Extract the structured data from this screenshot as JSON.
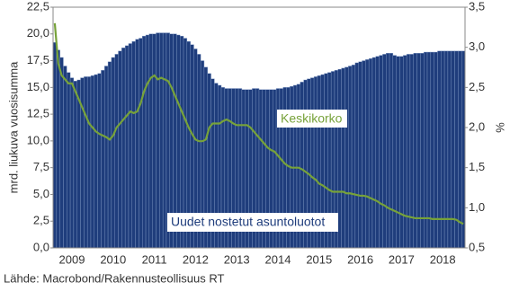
{
  "chart_data": {
    "type": "bar-line",
    "y_label": "mrd. liukuva vuosisumma",
    "y2_label": "%",
    "source": "Lähde: Macrobond/Rakennusteollisuus RT",
    "categories": [
      null,
      null,
      null,
      null,
      null,
      "2009",
      null,
      null,
      null,
      null,
      null,
      null,
      null,
      null,
      null,
      null,
      null,
      "2010",
      null,
      null,
      null,
      null,
      null,
      null,
      null,
      null,
      null,
      null,
      null,
      "2011",
      null,
      null,
      null,
      null,
      null,
      null,
      null,
      null,
      null,
      null,
      null,
      "2012",
      null,
      null,
      null,
      null,
      null,
      null,
      null,
      null,
      null,
      null,
      null,
      "2013",
      null,
      null,
      null,
      null,
      null,
      null,
      null,
      null,
      null,
      null,
      null,
      "2014",
      null,
      null,
      null,
      null,
      null,
      null,
      null,
      null,
      null,
      null,
      null,
      "2015",
      null,
      null,
      null,
      null,
      null,
      null,
      null,
      null,
      null,
      null,
      null,
      "2016",
      null,
      null,
      null,
      null,
      null,
      null,
      null,
      null,
      null,
      null,
      null,
      "2017",
      null,
      null,
      null,
      null,
      null,
      null,
      null,
      null,
      null,
      null,
      null,
      "2018",
      null,
      null,
      null,
      null,
      null,
      null
    ],
    "series": [
      {
        "name": "Uudet nostetut asuntoluotot",
        "color": "#1f3d7c",
        "values": [
          19.2,
          18.5,
          17.8,
          17.0,
          16.4,
          15.9,
          15.6,
          15.7,
          15.9,
          16.0,
          16.0,
          16.1,
          16.2,
          16.3,
          16.6,
          17.0,
          17.4,
          17.8,
          18.1,
          18.4,
          18.7,
          18.9,
          19.1,
          19.3,
          19.5,
          19.6,
          19.8,
          19.9,
          20.0,
          20.0,
          20.1,
          20.1,
          20.1,
          20.1,
          20.0,
          20.0,
          19.9,
          19.8,
          19.6,
          19.3,
          19.0,
          18.6,
          18.1,
          17.5,
          16.9,
          16.3,
          15.8,
          15.4,
          15.2,
          15.0,
          14.9,
          14.9,
          14.9,
          14.9,
          14.9,
          14.8,
          14.8,
          14.8,
          14.9,
          14.9,
          14.8,
          14.8,
          14.8,
          14.8,
          14.8,
          14.9,
          14.9,
          15.0,
          15.0,
          15.1,
          15.2,
          15.3,
          15.5,
          15.7,
          15.8,
          15.9,
          16.0,
          16.1,
          16.2,
          16.3,
          16.4,
          16.5,
          16.6,
          16.7,
          16.8,
          16.9,
          17.0,
          17.1,
          17.3,
          17.4,
          17.5,
          17.6,
          17.7,
          17.8,
          17.9,
          18.0,
          18.1,
          18.2,
          18.2,
          18.0,
          17.9,
          17.9,
          18.0,
          18.1,
          18.1,
          18.2,
          18.2,
          18.2,
          18.3,
          18.3,
          18.3,
          18.3,
          18.4,
          18.4,
          18.4,
          18.4,
          18.4,
          18.4,
          18.4,
          18.4
        ]
      },
      {
        "name": "Keskikorko",
        "color": "#77a23a",
        "axis": "y2",
        "values": [
          3.3,
          2.8,
          2.65,
          2.6,
          2.55,
          2.55,
          2.45,
          2.35,
          2.25,
          2.15,
          2.05,
          2.0,
          1.95,
          1.92,
          1.9,
          1.88,
          1.85,
          1.9,
          2.0,
          2.05,
          2.1,
          2.15,
          2.2,
          2.18,
          2.2,
          2.3,
          2.45,
          2.55,
          2.62,
          2.65,
          2.6,
          2.62,
          2.6,
          2.58,
          2.5,
          2.4,
          2.3,
          2.2,
          2.1,
          2.0,
          1.92,
          1.85,
          1.83,
          1.83,
          1.85,
          2.0,
          2.05,
          2.05,
          2.05,
          2.08,
          2.1,
          2.08,
          2.05,
          2.03,
          2.03,
          2.03,
          2.03,
          2.0,
          1.95,
          1.9,
          1.85,
          1.8,
          1.75,
          1.72,
          1.7,
          1.65,
          1.6,
          1.55,
          1.52,
          1.5,
          1.5,
          1.5,
          1.48,
          1.45,
          1.42,
          1.38,
          1.35,
          1.3,
          1.28,
          1.25,
          1.22,
          1.2,
          1.2,
          1.2,
          1.2,
          1.18,
          1.18,
          1.17,
          1.16,
          1.15,
          1.15,
          1.14,
          1.12,
          1.1,
          1.08,
          1.05,
          1.03,
          1.0,
          0.98,
          0.96,
          0.94,
          0.92,
          0.9,
          0.89,
          0.88,
          0.87,
          0.87,
          0.87,
          0.87,
          0.87,
          0.86,
          0.86,
          0.86,
          0.86,
          0.86,
          0.86,
          0.86,
          0.85,
          0.82,
          0.8
        ]
      }
    ],
    "ylim": [
      0,
      22.5
    ],
    "yticks": [
      {
        "value": 0,
        "label": "0,0"
      },
      {
        "value": 2.5,
        "label": "2,5"
      },
      {
        "value": 5,
        "label": "5,0"
      },
      {
        "value": 7.5,
        "label": "7,5"
      },
      {
        "value": 10,
        "label": "10,0"
      },
      {
        "value": 12.5,
        "label": "12,5"
      },
      {
        "value": 15,
        "label": "15,0"
      },
      {
        "value": 17.5,
        "label": "17,5"
      },
      {
        "value": 20,
        "label": "20,0"
      },
      {
        "value": 22.5,
        "label": "22,5"
      }
    ],
    "y2lim": [
      0.5,
      3.5
    ],
    "y2ticks": [
      {
        "value": 0.5,
        "label": "0,5"
      },
      {
        "value": 1,
        "label": "1,0"
      },
      {
        "value": 1.5,
        "label": "1,5"
      },
      {
        "value": 2,
        "label": "2,0"
      },
      {
        "value": 2.5,
        "label": "2,5"
      },
      {
        "value": 3,
        "label": "3,0"
      },
      {
        "value": 3.5,
        "label": "3,5"
      }
    ]
  }
}
